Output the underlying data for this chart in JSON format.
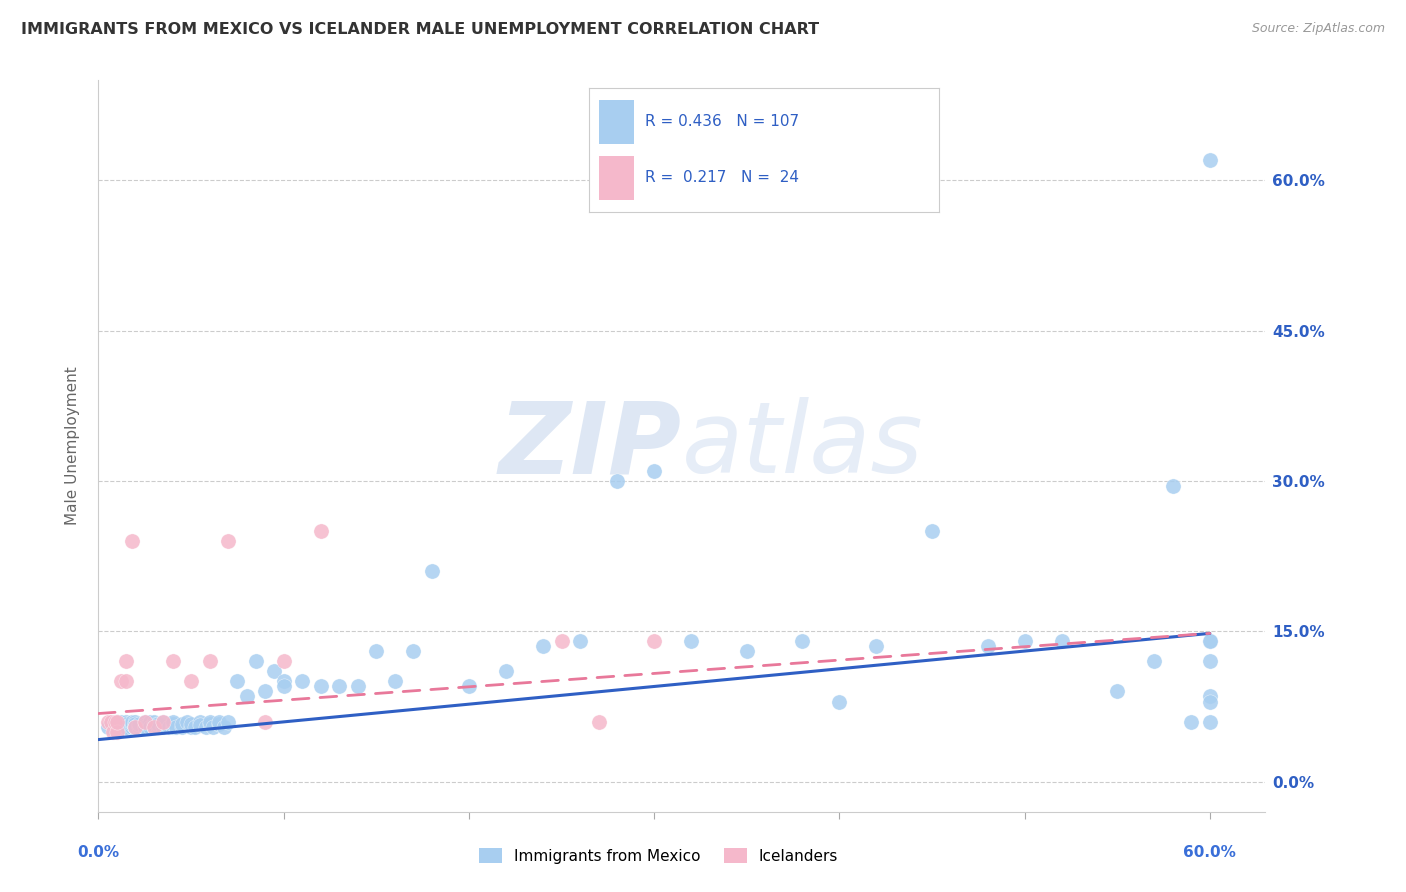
{
  "title": "IMMIGRANTS FROM MEXICO VS ICELANDER MALE UNEMPLOYMENT CORRELATION CHART",
  "source": "Source: ZipAtlas.com",
  "ylabel": "Male Unemployment",
  "xlim": [
    0.0,
    0.63
  ],
  "ylim": [
    -0.03,
    0.7
  ],
  "yticks": [
    0.0,
    0.15,
    0.3,
    0.45,
    0.6
  ],
  "ytick_labels": [
    "0.0%",
    "15.0%",
    "30.0%",
    "45.0%",
    "60.0%"
  ],
  "xtick_positions": [
    0.0,
    0.1,
    0.2,
    0.3,
    0.4,
    0.5,
    0.6
  ],
  "legend_labels": [
    "Immigrants from Mexico",
    "Icelanders"
  ],
  "blue_color": "#a8cef0",
  "pink_color": "#f5b8cb",
  "blue_line_color": "#2f5fc4",
  "pink_line_color": "#e8789a",
  "r_blue": 0.436,
  "n_blue": 107,
  "r_pink": 0.217,
  "n_pink": 24,
  "watermark_zip": "ZIP",
  "watermark_atlas": "atlas",
  "blue_scatter_x": [
    0.005,
    0.008,
    0.01,
    0.01,
    0.01,
    0.01,
    0.01,
    0.01,
    0.01,
    0.012,
    0.012,
    0.015,
    0.015,
    0.015,
    0.015,
    0.015,
    0.015,
    0.015,
    0.015,
    0.018,
    0.018,
    0.018,
    0.02,
    0.02,
    0.02,
    0.02,
    0.02,
    0.02,
    0.022,
    0.022,
    0.025,
    0.025,
    0.025,
    0.025,
    0.028,
    0.028,
    0.03,
    0.03,
    0.03,
    0.03,
    0.03,
    0.032,
    0.032,
    0.035,
    0.035,
    0.038,
    0.04,
    0.04,
    0.04,
    0.042,
    0.045,
    0.045,
    0.048,
    0.05,
    0.05,
    0.052,
    0.055,
    0.055,
    0.058,
    0.06,
    0.06,
    0.062,
    0.065,
    0.065,
    0.068,
    0.07,
    0.075,
    0.08,
    0.085,
    0.09,
    0.095,
    0.1,
    0.1,
    0.11,
    0.12,
    0.13,
    0.14,
    0.15,
    0.16,
    0.17,
    0.18,
    0.2,
    0.22,
    0.24,
    0.26,
    0.28,
    0.3,
    0.32,
    0.35,
    0.38,
    0.4,
    0.42,
    0.45,
    0.48,
    0.5,
    0.52,
    0.55,
    0.57,
    0.58,
    0.59,
    0.6,
    0.6,
    0.6,
    0.6,
    0.6,
    0.6,
    0.6
  ],
  "blue_scatter_y": [
    0.055,
    0.06,
    0.055,
    0.06,
    0.058,
    0.055,
    0.06,
    0.055,
    0.057,
    0.055,
    0.06,
    0.055,
    0.058,
    0.055,
    0.057,
    0.06,
    0.055,
    0.058,
    0.055,
    0.055,
    0.058,
    0.06,
    0.055,
    0.057,
    0.055,
    0.06,
    0.058,
    0.055,
    0.055,
    0.058,
    0.055,
    0.06,
    0.057,
    0.055,
    0.06,
    0.055,
    0.055,
    0.058,
    0.06,
    0.055,
    0.057,
    0.055,
    0.058,
    0.055,
    0.06,
    0.055,
    0.055,
    0.058,
    0.06,
    0.055,
    0.055,
    0.058,
    0.06,
    0.055,
    0.058,
    0.055,
    0.06,
    0.057,
    0.055,
    0.058,
    0.06,
    0.055,
    0.058,
    0.06,
    0.055,
    0.06,
    0.1,
    0.085,
    0.12,
    0.09,
    0.11,
    0.1,
    0.095,
    0.1,
    0.095,
    0.095,
    0.095,
    0.13,
    0.1,
    0.13,
    0.21,
    0.095,
    0.11,
    0.135,
    0.14,
    0.3,
    0.31,
    0.14,
    0.13,
    0.14,
    0.08,
    0.135,
    0.25,
    0.135,
    0.14,
    0.14,
    0.09,
    0.12,
    0.295,
    0.06,
    0.14,
    0.085,
    0.08,
    0.14,
    0.06,
    0.12,
    0.62
  ],
  "pink_scatter_x": [
    0.005,
    0.007,
    0.008,
    0.009,
    0.01,
    0.01,
    0.012,
    0.015,
    0.015,
    0.018,
    0.02,
    0.025,
    0.03,
    0.035,
    0.04,
    0.05,
    0.06,
    0.07,
    0.09,
    0.1,
    0.12,
    0.25,
    0.27,
    0.3
  ],
  "pink_scatter_y": [
    0.06,
    0.06,
    0.05,
    0.06,
    0.05,
    0.06,
    0.1,
    0.1,
    0.12,
    0.24,
    0.055,
    0.06,
    0.055,
    0.06,
    0.12,
    0.1,
    0.12,
    0.24,
    0.06,
    0.12,
    0.25,
    0.14,
    0.06,
    0.14
  ],
  "blue_trend_x0": 0.0,
  "blue_trend_y0": 0.042,
  "blue_trend_x1": 0.6,
  "blue_trend_y1": 0.148,
  "pink_trend_x0": 0.0,
  "pink_trend_y0": 0.068,
  "pink_trend_x1": 0.6,
  "pink_trend_y1": 0.148
}
